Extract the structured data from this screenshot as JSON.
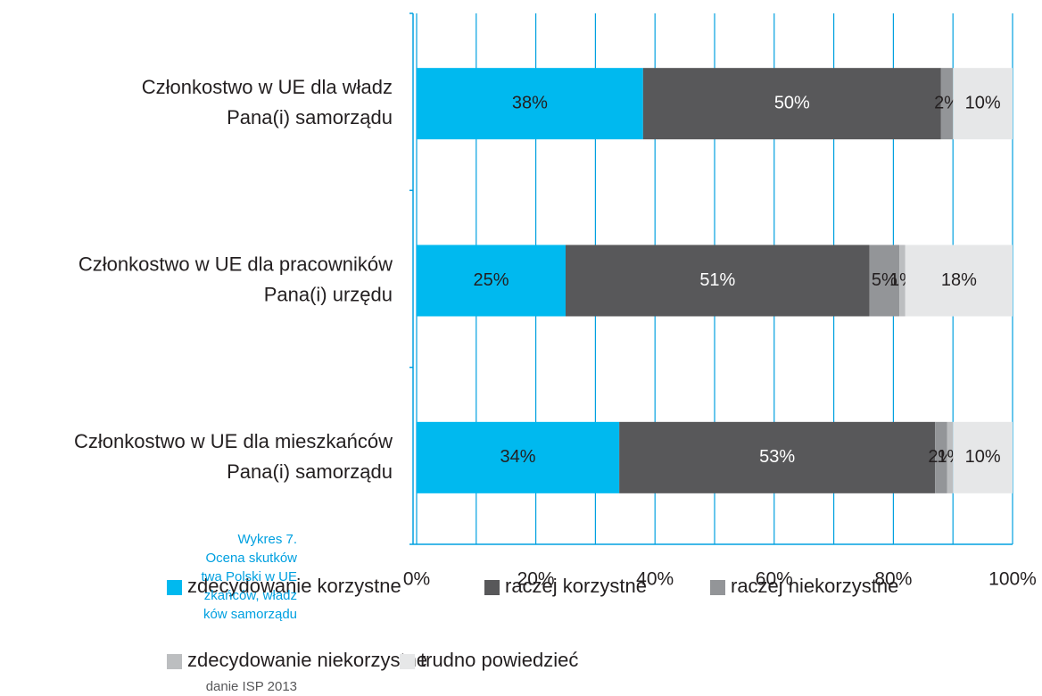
{
  "chart_data": {
    "type": "stacked_barh",
    "categories": [
      "Członkostwo w UE  dla władz\nPana(i)  samorządu",
      "Członkostwo w UE dla pracowników\nPana(i) urzędu",
      "Członkostwo w UE  dla mieszkańców\nPana(i) samorządu"
    ],
    "series": [
      {
        "name": "zdecydowanie korzystne",
        "color": "#00b9ef",
        "label_color": "#231f20",
        "values": [
          38,
          25,
          34
        ],
        "value_labels": [
          "38%",
          "25%",
          "34%"
        ]
      },
      {
        "name": "raczej korzystne",
        "color": "#58585a",
        "label_color": "#ffffff",
        "values": [
          50,
          51,
          53
        ],
        "value_labels": [
          "50%",
          "51%",
          "53%"
        ]
      },
      {
        "name": "raczej niekorzystne",
        "color": "#939598",
        "label_color": "#231f20",
        "values": [
          2,
          5,
          2
        ],
        "value_labels": [
          "2%",
          "5%",
          "2%"
        ]
      },
      {
        "name": "zdecydowanie niekorzystne",
        "color": "#bcbec0",
        "label_color": "#231f20",
        "values": [
          null,
          1,
          1
        ],
        "value_labels": [
          null,
          "1%",
          "1%"
        ]
      },
      {
        "name": "trudno powiedzieć",
        "color": "#e6e7e8",
        "label_color": "#231f20",
        "values": [
          10,
          18,
          10
        ],
        "value_labels": [
          "10%",
          "18%",
          "10%"
        ]
      }
    ],
    "xlim": [
      0,
      100
    ],
    "xticks": [
      {
        "value": 0,
        "label": "0%"
      },
      {
        "value": 20,
        "label": "20%"
      },
      {
        "value": 40,
        "label": "40%"
      },
      {
        "value": 60,
        "label": "60%"
      },
      {
        "value": 80,
        "label": "80%"
      },
      {
        "value": 100,
        "label": "100%"
      }
    ],
    "xminor_ticks": [
      10,
      30,
      50,
      70,
      90
    ],
    "grid": true,
    "grid_color": "#00a0e0",
    "side_note": [
      "Wykres 7.",
      "Ocena skutków",
      "twa Polski w UE",
      "zkańców, władz",
      "ków samorządu"
    ],
    "source": "danie ISP 2013"
  }
}
